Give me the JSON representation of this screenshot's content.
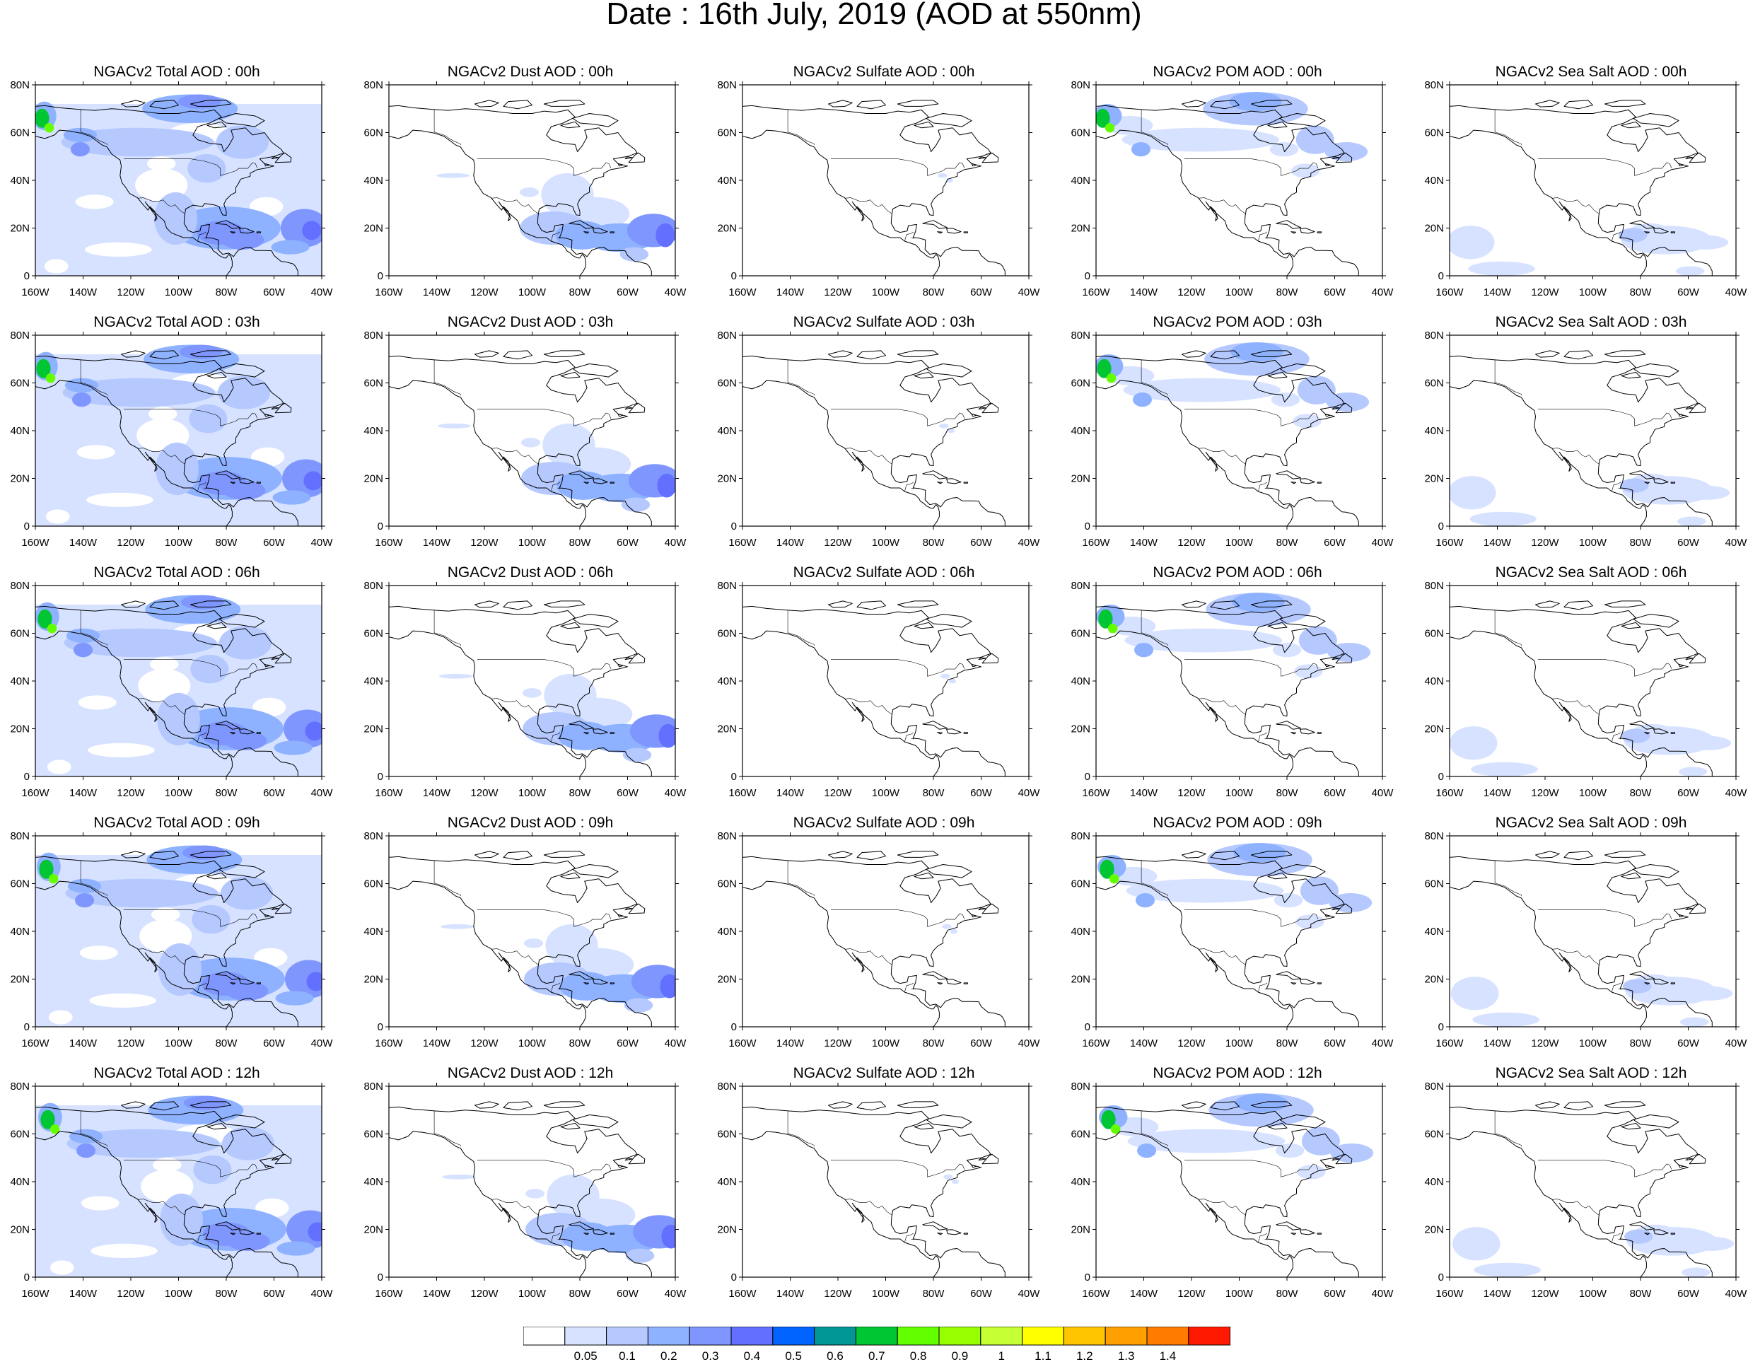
{
  "title": "Date : 16th July, 2019 (AOD at 550nm)",
  "axes": {
    "lat_ticks": [
      "80N",
      "60N",
      "40N",
      "20N",
      "0"
    ],
    "lon_ticks": [
      "160W",
      "140W",
      "120W",
      "100W",
      "80W",
      "60W",
      "40W"
    ]
  },
  "colorbar": {
    "colors": [
      "#ffffff",
      "#d6e2ff",
      "#b5c9ff",
      "#8eb2ff",
      "#7f96ff",
      "#6370ff",
      "#0063ff",
      "#009696",
      "#00c633",
      "#63ff00",
      "#96ff00",
      "#c6ff33",
      "#ffff00",
      "#ffc600",
      "#ffa000",
      "#ff7c00",
      "#ff1900"
    ],
    "labels": [
      "0.05",
      "0.1",
      "0.2",
      "0.3",
      "0.4",
      "0.5",
      "0.6",
      "0.7",
      "0.8",
      "0.9",
      "1",
      "1.1",
      "1.2",
      "1.3",
      "1.4"
    ]
  },
  "panels": [
    [
      "NGACv2 Total AOD : 00h",
      "NGACv2 Dust AOD : 00h",
      "NGACv2 Sulfate AOD : 00h",
      "NGACv2 POM AOD : 00h",
      "NGACv2 Sea Salt AOD : 00h"
    ],
    [
      "NGACv2 Total AOD : 03h",
      "NGACv2 Dust AOD : 03h",
      "NGACv2 Sulfate AOD : 03h",
      "NGACv2 POM AOD : 03h",
      "NGACv2 Sea Salt AOD : 03h"
    ],
    [
      "NGACv2 Total AOD : 06h",
      "NGACv2 Dust AOD : 06h",
      "NGACv2 Sulfate AOD : 06h",
      "NGACv2 POM AOD : 06h",
      "NGACv2 Sea Salt AOD : 06h"
    ],
    [
      "NGACv2 Total AOD : 09h",
      "NGACv2 Dust AOD : 09h",
      "NGACv2 Sulfate AOD : 09h",
      "NGACv2 POM AOD : 09h",
      "NGACv2 Sea Salt  AOD : 09h"
    ],
    [
      "NGACv2 Total AOD  : 12h",
      "NGACv2 Dust AOD : 12h",
      "NGACv2 Sulfate AOD : 12h",
      "NGACv2 POM  AOD : 12h",
      "NGACv2 Sea Salt  AOD : 12h"
    ]
  ]
}
